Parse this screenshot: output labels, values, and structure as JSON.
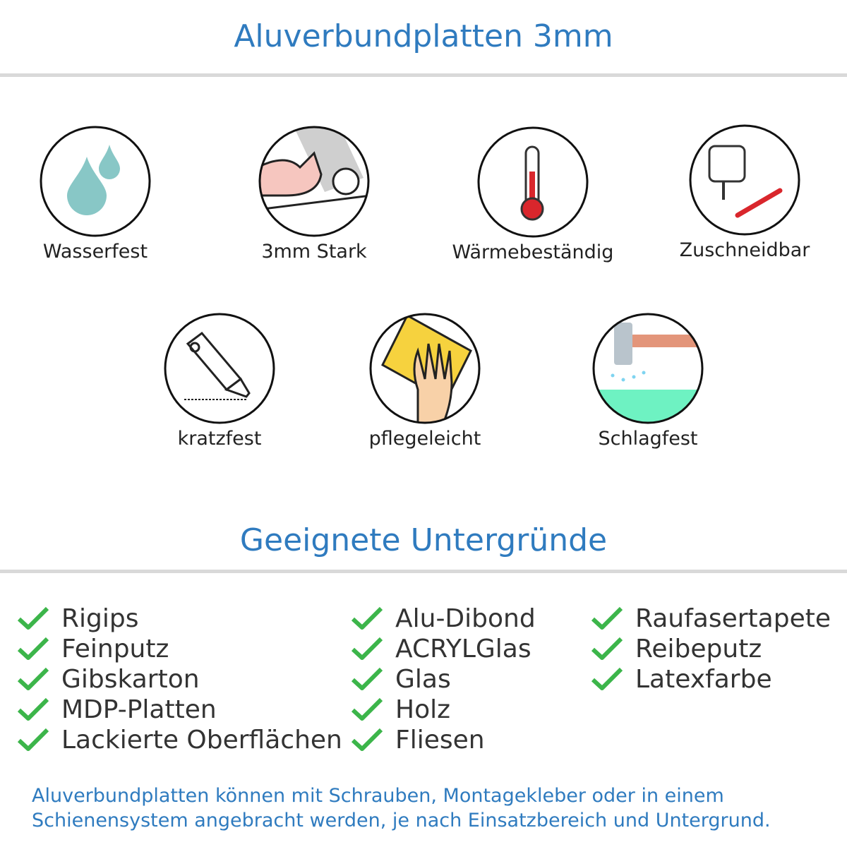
{
  "header": {
    "title": "Aluverbundplatten 3mm"
  },
  "features": [
    {
      "label": "Wasserfest",
      "icon": "water-drops-icon"
    },
    {
      "label": "3mm Stark",
      "icon": "strong-arm-icon"
    },
    {
      "label": "Wärmebeständig",
      "icon": "thermometer-icon"
    },
    {
      "label": "Zuschneidbar",
      "icon": "jigsaw-icon"
    },
    {
      "label": "kratzfest",
      "icon": "cutter-knife-icon"
    },
    {
      "label": "pflegeleicht",
      "icon": "hand-sponge-icon"
    },
    {
      "label": "Schlagfest",
      "icon": "hammer-icon"
    }
  ],
  "surfaces": {
    "title": "Geeignete Untergründe",
    "columns": [
      [
        "Rigips",
        "Feinputz",
        "Gibskarton",
        "MDP-Platten",
        "Lackierte Oberflächen"
      ],
      [
        "Alu-Dibond",
        "ACRYLGlas",
        "Glas",
        "Holz",
        "Fliesen"
      ],
      [
        "Raufasertapete",
        "Reibeputz",
        "Latexfarbe"
      ]
    ]
  },
  "footer": {
    "line1": "Aluverbundplatten können mit Schrauben, Montagekleber oder in einem",
    "line2": "Schienensystem angebracht werden, je nach Einsatzbereich und Untergrund."
  },
  "colors": {
    "accent": "#2f7bbf",
    "check": "#3cb54a",
    "text": "#333333"
  }
}
